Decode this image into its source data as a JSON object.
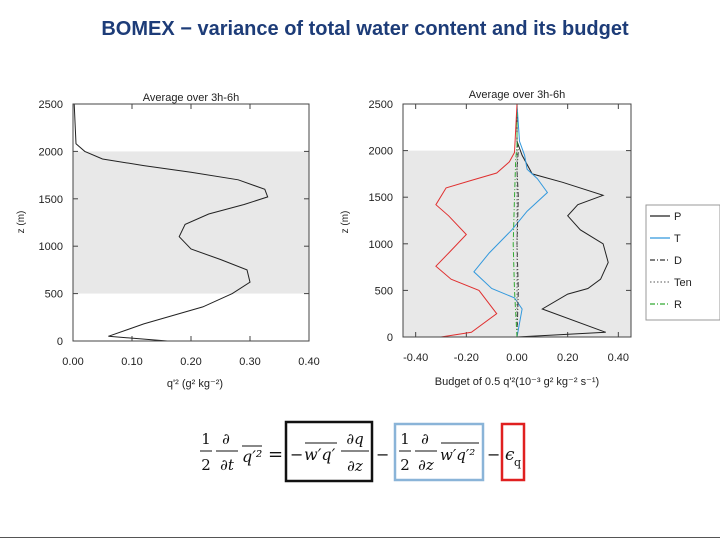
{
  "slide": {
    "title": "BOMEX − variance of total water content and its budget"
  },
  "chart_data": [
    {
      "type": "line",
      "title": "Average over 3h-6h",
      "xlabel": "q'² (g² kg⁻²)",
      "ylabel": "z (m)",
      "xlim": [
        0.0,
        0.4
      ],
      "ylim": [
        0,
        2500
      ],
      "xticks": [
        "0.00",
        "0.10",
        "0.20",
        "0.30",
        "0.40"
      ],
      "yticks": [
        "0",
        "500",
        "1000",
        "1500",
        "2000",
        "2500"
      ],
      "shaded_z_range": [
        500,
        2000
      ],
      "grid": false,
      "legend": "none",
      "series": [
        {
          "color": "#222222",
          "x": [
            0.16,
            0.06,
            0.12,
            0.22,
            0.27,
            0.3,
            0.295,
            0.25,
            0.2,
            0.18,
            0.19,
            0.23,
            0.29,
            0.33,
            0.325,
            0.28,
            0.2,
            0.12,
            0.05,
            0.02,
            0.005,
            0.002
          ],
          "y": [
            0,
            50,
            180,
            360,
            500,
            620,
            750,
            860,
            970,
            1100,
            1230,
            1340,
            1440,
            1520,
            1600,
            1700,
            1780,
            1850,
            1920,
            2000,
            2080,
            2500
          ]
        }
      ]
    },
    {
      "type": "line",
      "title": "Average over 3h-6h",
      "xlabel": "Budget of 0.5 q'²(10⁻³ g² kg⁻² s⁻¹)",
      "ylabel": "z (m)",
      "xlim": [
        -0.45,
        0.45
      ],
      "ylim": [
        0,
        2500
      ],
      "xticks": [
        "-0.40",
        "-0.20",
        "0.00",
        "0.20",
        "0.40"
      ],
      "yticks": [
        "0",
        "500",
        "1000",
        "1500",
        "2000",
        "2500"
      ],
      "shaded_z_range": [
        0,
        2000
      ],
      "grid": false,
      "legend": "right",
      "series": [
        {
          "name": "P",
          "color": "#222222",
          "dash": "solid",
          "x": [
            0.0,
            0.35,
            0.1,
            0.2,
            0.28,
            0.33,
            0.36,
            0.34,
            0.25,
            0.2,
            0.24,
            0.34,
            0.18,
            0.06,
            0.02,
            0.0,
            0.0
          ],
          "y": [
            0,
            50,
            300,
            460,
            520,
            620,
            800,
            1000,
            1150,
            1300,
            1420,
            1520,
            1660,
            1750,
            1950,
            2100,
            2500
          ]
        },
        {
          "name": "T",
          "color": "#3399dd",
          "dash": "solid",
          "x": [
            0.0,
            0.02,
            -0.01,
            -0.1,
            -0.17,
            -0.11,
            -0.02,
            0.04,
            0.12,
            0.08,
            0.04,
            0.03,
            0.01,
            0.0
          ],
          "y": [
            0,
            300,
            420,
            520,
            700,
            900,
            1150,
            1350,
            1550,
            1700,
            1800,
            1950,
            2100,
            2500
          ]
        },
        {
          "name": "D",
          "color": "#333333",
          "dash": "dashdot",
          "x": [
            0.0,
            0.005,
            0.0,
            0.005,
            0.0,
            0.005,
            0.0,
            0.0
          ],
          "y": [
            0,
            500,
            1000,
            1500,
            1800,
            2000,
            2100,
            2500
          ]
        },
        {
          "name": "Ten",
          "color": "#777777",
          "dash": "dotted",
          "x": [
            0.0,
            0.0,
            0.0
          ],
          "y": [
            0,
            1500,
            2500
          ]
        },
        {
          "name": "R",
          "color": "#33aa33",
          "dash": "dashdot",
          "x": [
            0.0,
            -0.01,
            -0.015,
            -0.01,
            -0.005,
            0.0,
            0.0
          ],
          "y": [
            0,
            500,
            1000,
            1500,
            1900,
            2050,
            2500
          ]
        },
        {
          "name": "",
          "color": "#e03030",
          "dash": "solid",
          "x": [
            -0.3,
            -0.18,
            -0.08,
            -0.15,
            -0.26,
            -0.32,
            -0.27,
            -0.2,
            -0.27,
            -0.32,
            -0.28,
            -0.18,
            -0.08,
            -0.03,
            -0.01,
            0.0
          ],
          "y": [
            0,
            50,
            250,
            500,
            620,
            760,
            900,
            1100,
            1300,
            1420,
            1600,
            1680,
            1760,
            1880,
            1980,
            2500
          ]
        }
      ]
    }
  ],
  "equation": {
    "lhs_num": "1",
    "lhs_den": "2",
    "lhs_d": "∂",
    "lhs_dt": "∂t",
    "lhs_var": "q′²",
    "equals": "=",
    "term1_sign": "−",
    "term1_flux": "w′q′",
    "term1_dq": "∂q",
    "term1_dz": "∂z",
    "minus1": "−",
    "term2_num": "1",
    "term2_den": "2",
    "term2_d": "∂",
    "term2_dz": "∂z",
    "term2_flux": "w′q′²",
    "minus2": "−",
    "term3": "ϵ",
    "term3_sub": "q",
    "box_colors": {
      "term1": "#111111",
      "term2": "#8ab4d8",
      "term3": "#e02020"
    }
  }
}
